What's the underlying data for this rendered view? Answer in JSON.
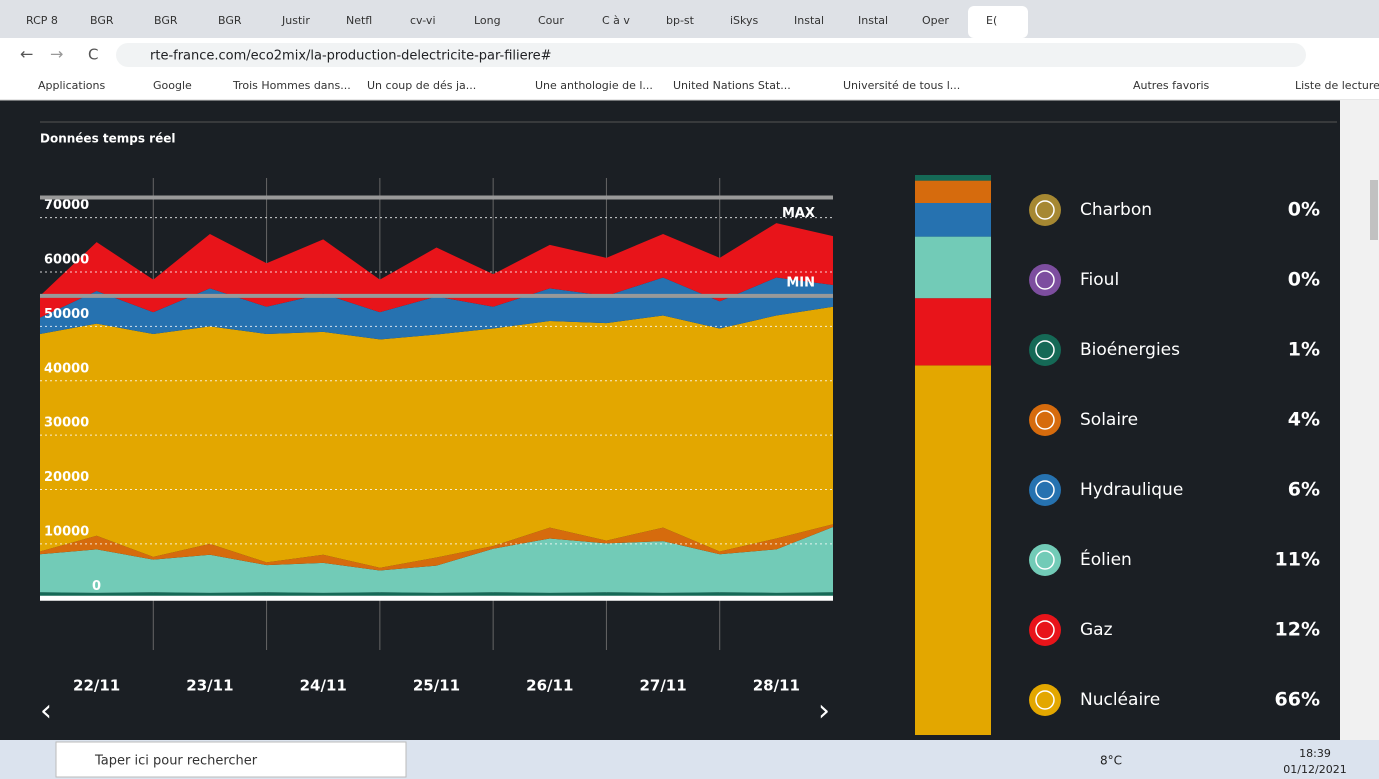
{
  "browser": {
    "tabs": [
      "RCP 8",
      "BGR",
      "BGR",
      "BGR",
      "Justir",
      "Netfl",
      "cv-vi",
      "Long",
      "Cour",
      "C à v",
      "bp-st",
      "iSkys",
      "Instal",
      "Instal",
      "Oper",
      "E("
    ],
    "url": "rte-france.com/eco2mix/la-production-delectricite-par-filiere#",
    "bookmarks": [
      "Applications",
      "Google",
      "Trois Hommes dans...",
      "Un coup de dés ja...",
      "Une anthologie de l...",
      "United Nations Stat...",
      "Université de tous l..."
    ],
    "bookmarks_right": [
      "Autres favoris",
      "Liste de lecture"
    ]
  },
  "section_title": "Données temps réel",
  "chart_data": [
    {
      "type": "area",
      "categories": [
        null,
        "22/11",
        null,
        "23/11",
        null,
        "24/11",
        null,
        "25/11",
        null,
        "26/11",
        null,
        "27/11",
        null,
        "28/11",
        null
      ],
      "ylim": [
        -4000,
        76000
      ],
      "yticks": [
        0,
        10000,
        20000,
        30000,
        40000,
        50000,
        60000,
        70000
      ],
      "max_line": {
        "value": 73700,
        "label": "MAX"
      },
      "min_line": {
        "value": 55600,
        "label": "MIN"
      },
      "series": [
        {
          "color": "#156956",
          "values": [
            1100,
            1000,
            1100,
            1000,
            1100,
            1000,
            1100,
            1000,
            1100,
            1000,
            1100,
            1000,
            1100,
            1000,
            1100
          ]
        },
        {
          "color": "#72cbb7",
          "values": [
            7000,
            8000,
            6000,
            7000,
            5000,
            5500,
            4000,
            5000,
            8000,
            10000,
            9000,
            9500,
            7000,
            8000,
            12000
          ]
        },
        {
          "color": "#d66b0d",
          "values": [
            500,
            2500,
            500,
            2000,
            500,
            1500,
            500,
            1500,
            500,
            2000,
            500,
            2500,
            500,
            2000,
            500
          ]
        },
        {
          "color": "#e3a700",
          "values": [
            40000,
            39000,
            41000,
            40000,
            42000,
            41000,
            42000,
            41000,
            40000,
            38000,
            40000,
            39000,
            41000,
            41000,
            40000
          ]
        },
        {
          "color": "#2672b0",
          "values": [
            3000,
            6000,
            4000,
            7000,
            5000,
            7000,
            5000,
            7000,
            4000,
            6000,
            5000,
            7000,
            5000,
            7000,
            4000
          ]
        },
        {
          "color": "#e8141a",
          "values": [
            4000,
            9000,
            6000,
            10000,
            8000,
            10000,
            6000,
            9000,
            6000,
            8000,
            7000,
            8000,
            8000,
            10000,
            9000
          ]
        }
      ]
    },
    {
      "type": "stacked_bar",
      "categories": [
        "Charbon",
        "Fioul",
        "Bioénergies",
        "Solaire",
        "Hydraulique",
        "Éolien",
        "Gaz",
        "Nucléaire"
      ],
      "values": [
        0,
        0,
        1,
        4,
        6,
        11,
        12,
        66
      ],
      "value_labels": [
        "0%",
        "0%",
        "1%",
        "4%",
        "6%",
        "11%",
        "12%",
        "66%"
      ],
      "colors": [
        "#a68832",
        "#7d4e9f",
        "#156956",
        "#d66b0d",
        "#2672b0",
        "#72cbb7",
        "#e8141a",
        "#e3a700"
      ],
      "ylim": [
        0,
        100
      ]
    }
  ],
  "taskbar": {
    "search": "Taper ici pour rechercher",
    "weather": "8°C",
    "time": "18:39",
    "date": "01/12/2021"
  }
}
